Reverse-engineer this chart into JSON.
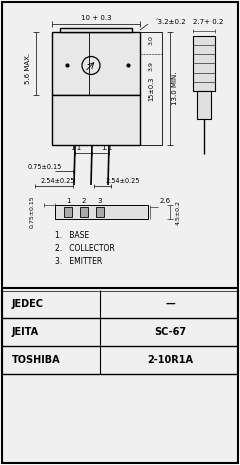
{
  "bg_color": "#f0f0f0",
  "border_color": "#000000",
  "table_rows": [
    {
      "label": "JEDEC",
      "value": "—"
    },
    {
      "label": "JEITA",
      "value": "SC-67"
    },
    {
      "label": "TOSHIBA",
      "value": "2-10R1A"
    }
  ],
  "dims": {
    "top_width": "10 + 0.3",
    "top_right": "΄3.2±0.2",
    "side_right": "2.7+ 0.2",
    "height_upper": "15±0.3",
    "inner_3_9": "3.9",
    "inner_3_0": "3.0",
    "height_min": "13.0 MIN.",
    "left_max": "5.6 MAX.",
    "pin_spacing1": "1.1",
    "pin_spacing2": "1.1",
    "pin_offset": "0.75±0.15",
    "pin_pitch1": "2.54±0.25",
    "pin_pitch2": "2.54±0.25",
    "bot_offset": "0.75±0.15",
    "bot_width": "2.6",
    "bot_height": "4.5±0.2",
    "pin_labels": [
      "1",
      "2",
      "3"
    ],
    "pin_names": [
      "BASE",
      "COLLECTOR",
      "EMITTER"
    ]
  }
}
